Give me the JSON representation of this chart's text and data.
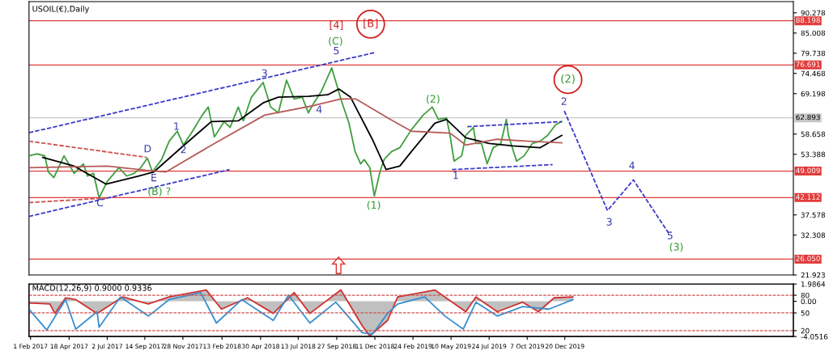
{
  "chart_data": [
    {
      "type": "line",
      "title": "USOIL(€),Daily",
      "tick_labels": "y",
      "xlim": [
        "2017-01-29",
        "2021-03-14"
      ],
      "ylim": [
        21.923,
        93.2
      ],
      "yticks": [
        90.278,
        85.008,
        79.738,
        74.468,
        69.198,
        58.658,
        53.388,
        37.578,
        32.308,
        21.923
      ],
      "series": [
        {
          "color": "#3f9f3f",
          "x": [
            "2017-01-29",
            "2017-02-13",
            "2017-03-01",
            "2017-03-08",
            "2017-03-19",
            "2017-04-08",
            "2017-04-28",
            "2017-05-16",
            "2017-05-24",
            "2017-06-05",
            "2017-06-16",
            "2017-07-02",
            "2017-07-25",
            "2017-08-09",
            "2017-08-24",
            "2017-09-06",
            "2017-09-19",
            "2017-09-29",
            "2017-10-17",
            "2017-11-01",
            "2017-11-17",
            "2017-11-29",
            "2017-12-17",
            "2018-01-05",
            "2018-01-17",
            "2018-01-29",
            "2018-02-17",
            "2018-03-01",
            "2018-03-17",
            "2018-03-27",
            "2018-04-12",
            "2018-05-05",
            "2018-05-20",
            "2018-06-04",
            "2018-06-20",
            "2018-07-05",
            "2018-07-21",
            "2018-08-02",
            "2018-08-13",
            "2018-08-28",
            "2018-09-17",
            "2018-09-28",
            "2018-10-05",
            "2018-10-21",
            "2018-11-02",
            "2018-11-13",
            "2018-11-20",
            "2018-12-01",
            "2018-12-10",
            "2018-12-21",
            "2018-12-29",
            "2019-01-13",
            "2019-01-29",
            "2019-02-21",
            "2019-03-16",
            "2019-04-03",
            "2019-04-15",
            "2019-05-01",
            "2019-05-08",
            "2019-05-16",
            "2019-05-31",
            "2019-06-08",
            "2019-06-23",
            "2019-06-28",
            "2019-07-09",
            "2019-07-20",
            "2019-08-01",
            "2019-08-16",
            "2019-08-27",
            "2019-08-31",
            "2019-09-16",
            "2019-10-01",
            "2019-10-17",
            "2019-11-01",
            "2019-11-16",
            "2019-12-02",
            "2019-12-14"
          ],
          "values": [
            53.0,
            53.5,
            53.0,
            48.8,
            47.3,
            53.0,
            48.4,
            50.9,
            47.7,
            48.4,
            42.0,
            46.3,
            49.9,
            47.7,
            48.4,
            49.9,
            52.4,
            48.8,
            52.0,
            56.8,
            59.4,
            55.8,
            59.4,
            63.6,
            65.7,
            57.9,
            61.9,
            60.4,
            65.7,
            62.1,
            68.3,
            72.1,
            65.7,
            64.2,
            72.7,
            67.8,
            68.3,
            64.2,
            66.8,
            69.9,
            75.9,
            71.0,
            67.8,
            61.5,
            54.1,
            50.9,
            52.0,
            49.9,
            42.5,
            48.8,
            52.0,
            54.1,
            55.1,
            59.8,
            63.6,
            65.7,
            62.5,
            62.9,
            58.3,
            51.6,
            53.0,
            58.3,
            60.4,
            56.2,
            56.2,
            50.9,
            55.1,
            56.2,
            62.5,
            58.3,
            51.6,
            53.0,
            56.2,
            56.8,
            58.3,
            61.1,
            61.9
          ]
        },
        {
          "color": "#000000",
          "x": [
            "2017-02-25",
            "2017-04-28",
            "2017-06-30",
            "2017-09-01",
            "2017-10-02",
            "2017-11-29",
            "2018-01-23",
            "2018-03-17",
            "2018-05-05",
            "2018-06-04",
            "2018-08-02",
            "2018-09-09",
            "2018-10-01",
            "2018-10-24",
            "2018-12-06",
            "2019-01-02",
            "2019-01-29",
            "2019-02-21",
            "2019-04-08",
            "2019-05-01",
            "2019-06-08",
            "2019-07-24",
            "2019-09-08",
            "2019-11-01",
            "2019-12-14"
          ],
          "values": [
            52.6,
            50.3,
            45.6,
            47.7,
            48.8,
            55.6,
            61.9,
            62.1,
            66.8,
            68.3,
            68.5,
            68.9,
            70.4,
            68.3,
            57.3,
            49.4,
            50.3,
            54.1,
            61.5,
            62.5,
            57.7,
            56.2,
            55.6,
            55.1,
            58.3
          ]
        },
        {
          "color": "#b85a5a",
          "x": [
            "2017-01-29",
            "2017-07-02",
            "2017-09-17",
            "2017-10-26",
            "2018-01-29",
            "2018-05-08",
            "2018-08-13",
            "2018-10-05",
            "2018-11-04",
            "2019-01-10",
            "2019-02-21",
            "2019-05-08",
            "2019-06-08",
            "2019-08-08",
            "2019-10-10",
            "2019-12-14"
          ],
          "values": [
            49.9,
            50.3,
            49.2,
            48.8,
            56.2,
            63.6,
            66.1,
            67.8,
            67.8,
            62.5,
            59.4,
            58.9,
            55.8,
            57.3,
            56.8,
            56.4
          ]
        },
        {
          "color": "#3b3bc8",
          "line_style": "dashed",
          "x": [
            "2017-01-29",
            "2018-12-10"
          ],
          "values": [
            59.0,
            79.9
          ]
        },
        {
          "color": "#3b3bc8",
          "line_style": "dashed",
          "x": [
            "2017-01-29",
            "2018-02-28"
          ],
          "values": [
            37.2,
            49.4
          ]
        },
        {
          "color": "#d05050",
          "line_style": "dashed",
          "x": [
            "2017-01-29",
            "2017-09-17"
          ],
          "values": [
            56.8,
            52.6
          ]
        },
        {
          "color": "#d05050",
          "line_style": "dashed",
          "x": [
            "2017-01-29",
            "2017-07-02"
          ],
          "values": [
            40.8,
            42.0
          ]
        },
        {
          "color": "#3b3bc8",
          "line_style": "dashed",
          "x": [
            "2019-05-12",
            "2019-11-26"
          ],
          "values": [
            49.4,
            50.7
          ]
        },
        {
          "color": "#3b3bc8",
          "line_style": "dashed",
          "x": [
            "2019-06-11",
            "2019-12-14"
          ],
          "values": [
            60.6,
            61.9
          ]
        },
        {
          "color": "#3b3bc8",
          "line_style": "dashed",
          "x": [
            "2019-12-19",
            "2020-03-13",
            "2020-05-03",
            "2020-07-11"
          ],
          "values": [
            64.7,
            38.7,
            46.7,
            32.9
          ]
        }
      ],
      "ref_lines": [
        {
          "axis": "y",
          "value": 88.198,
          "label": "88.198",
          "color": "#e03c3c"
        },
        {
          "axis": "y",
          "value": 76.691,
          "label": "76.691",
          "color": "#e03c3c"
        },
        {
          "axis": "y",
          "value": 62.893,
          "label": "62.893",
          "color": "#c8c8c8"
        },
        {
          "axis": "y",
          "value": 49.009,
          "label": "49.009",
          "color": "#e03c3c"
        },
        {
          "axis": "y",
          "value": 42.112,
          "label": "42.112",
          "color": "#e03c3c"
        },
        {
          "axis": "y",
          "value": 26.05,
          "label": "26.050",
          "color": "#e03c3c"
        }
      ],
      "annotations": [
        "[4]",
        "[B]",
        "(C)",
        "5",
        "3",
        "4",
        "1",
        "2",
        "D",
        "E",
        "(B) ?",
        "C",
        "(1)",
        "(2)",
        "1",
        "(2)",
        "2",
        "3",
        "4",
        "5",
        "(3)"
      ]
    },
    {
      "type": "line",
      "title": "MACD(12,26,9) 0.9000 0.9336",
      "xlim": [
        "2017-01-29",
        "2021-03-14"
      ],
      "xticks": [
        {
          "value": "2017-02-01",
          "label": "1 Feb 2017"
        },
        {
          "value": "2017-04-18",
          "label": "18 Apr 2017"
        },
        {
          "value": "2017-07-02",
          "label": "2 Jul 2017"
        },
        {
          "value": "2017-09-14",
          "label": "14 Sep 2017"
        },
        {
          "value": "2017-11-28",
          "label": "28 Nov 2017"
        },
        {
          "value": "2018-02-13",
          "label": "13 Feb 2018"
        },
        {
          "value": "2018-04-30",
          "label": "30 Apr 2018"
        },
        {
          "value": "2018-07-13",
          "label": "13 Jul 2018"
        },
        {
          "value": "2018-09-27",
          "label": "27 Sep 2018"
        },
        {
          "value": "2018-12-11",
          "label": "11 Dec 2018"
        },
        {
          "value": "2019-02-24",
          "label": "24 Feb 2019"
        },
        {
          "value": "2019-05-10",
          "label": "10 May 2019"
        },
        {
          "value": "2019-07-24",
          "label": "24 Jul 2019"
        },
        {
          "value": "2019-10-07",
          "label": "7 Oct 2019"
        },
        {
          "value": "2019-12-20",
          "label": "20 Dec 2019"
        }
      ],
      "ylim": [
        -4.0516,
        1.9864
      ],
      "yticks": [
        1.9864,
        {
          "value": 0,
          "label": "0.00"
        },
        -4.0516
      ],
      "y2lim": [
        10,
        99
      ],
      "y2ticks": [
        80,
        50,
        20
      ],
      "series": [
        {
          "type": "area",
          "color": "#d03030",
          "x": [
            "2017-01-29",
            "2017-03-11",
            "2017-03-21",
            "2017-04-11",
            "2017-05-01",
            "2017-06-12",
            "2017-08-01",
            "2017-09-21",
            "2017-11-01",
            "2018-01-13",
            "2018-02-12",
            "2018-04-04",
            "2018-05-25",
            "2018-07-05",
            "2018-08-05",
            "2018-10-05",
            "2018-11-16",
            "2018-12-01",
            "2019-01-05",
            "2019-01-25",
            "2019-04-08",
            "2019-06-08",
            "2019-06-28",
            "2019-08-09",
            "2019-09-28",
            "2019-10-29",
            "2019-11-29",
            "2020-01-05"
          ],
          "values": [
            -0.2,
            -0.3,
            -1.4,
            0.4,
            0.2,
            -1.4,
            0.5,
            -0.3,
            0.5,
            1.3,
            -0.9,
            0.4,
            -1.4,
            1.0,
            -1.4,
            1.3,
            -2.8,
            -4.0,
            -2.2,
            0.5,
            1.3,
            -1.2,
            0.5,
            -1.2,
            -0.1,
            -1.2,
            0.4,
            0.5
          ]
        },
        {
          "color": "#3a8fd0",
          "x": [
            "2017-01-29",
            "2017-03-05",
            "2017-04-11",
            "2017-05-01",
            "2017-06-12",
            "2017-06-16",
            "2017-07-28",
            "2017-09-21",
            "2017-11-01",
            "2018-01-02",
            "2018-02-02",
            "2018-03-24",
            "2018-05-25",
            "2018-06-24",
            "2018-08-05",
            "2018-09-25",
            "2018-11-16",
            "2018-12-06",
            "2019-01-05",
            "2019-01-25",
            "2019-03-19",
            "2019-04-28",
            "2019-06-03",
            "2019-06-28",
            "2019-08-09",
            "2019-09-28",
            "2019-11-19",
            "2020-01-05"
          ],
          "values": [
            -0.9,
            -3.3,
            0.2,
            -3.2,
            -1.2,
            -3.0,
            0.5,
            -1.7,
            0.2,
            1.0,
            -2.5,
            0.2,
            -2.2,
            0.7,
            -2.5,
            -0.1,
            -3.6,
            -3.8,
            -1.4,
            -0.3,
            0.5,
            -1.7,
            -3.2,
            -0.1,
            -1.7,
            -0.6,
            -0.9,
            0.2
          ]
        }
      ],
      "ref_lines": [
        {
          "axis": "y2",
          "value": 80,
          "color": "#d05050",
          "line_style": "dashed"
        },
        {
          "axis": "y2",
          "value": 50,
          "color": "#d05050",
          "line_style": "dashed"
        },
        {
          "axis": "y2",
          "value": 20,
          "color": "#d05050",
          "line_style": "dashed"
        }
      ]
    }
  ]
}
